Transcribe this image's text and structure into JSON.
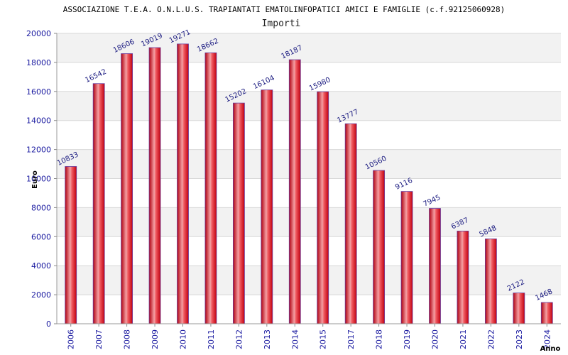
{
  "chart_data": {
    "type": "bar",
    "title": "ASSOCIAZIONE T.E.A. O.N.L.U.S. TRAPIANTATI EMATOLINFOPATICI AMICI E FAMIGLIE (c.f.92125060928)",
    "subtitle": "Importi",
    "xlabel": "Anno",
    "ylabel": "Euro",
    "categories": [
      "2006",
      "2007",
      "2008",
      "2009",
      "2010",
      "2011",
      "2012",
      "2013",
      "2014",
      "2015",
      "2017",
      "2018",
      "2019",
      "2020",
      "2021",
      "2022",
      "2023",
      "2024"
    ],
    "values": [
      10833,
      16542,
      18606,
      19019,
      19271,
      18662,
      15202,
      16104,
      18187,
      15980,
      13777,
      10560,
      9116,
      7945,
      6387,
      5848,
      2122,
      1468
    ],
    "ylim": [
      0,
      20000
    ],
    "yticks": [
      0,
      2000,
      4000,
      6000,
      8000,
      10000,
      12000,
      14000,
      16000,
      18000,
      20000
    ],
    "grid": true,
    "data_labels": true,
    "colors": {
      "bar": "#e8101a",
      "bar_highlight": "#f4a0a4",
      "bar_edge": "#6a3fa0",
      "tick_text": "#1a1aa0",
      "band": "#f2f2f2"
    }
  }
}
